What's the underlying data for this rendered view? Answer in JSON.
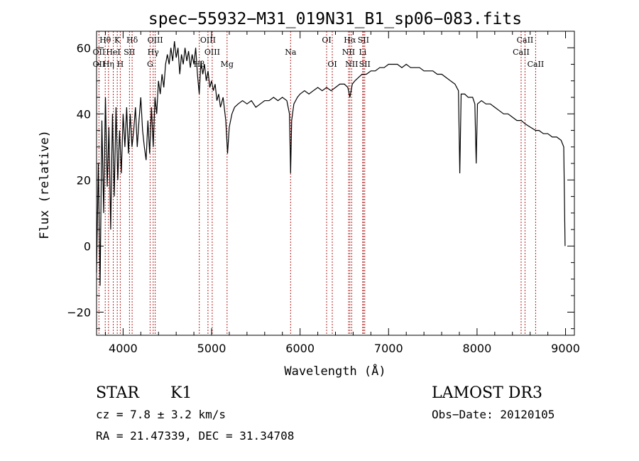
{
  "chart_data": {
    "type": "line",
    "title": "spec−55932−M31_019N31_B1_sp06−083.fits",
    "xlabel": "Wavelength (Å)",
    "ylabel": "Flux (relative)",
    "xlim": [
      3700,
      9100
    ],
    "ylim": [
      -27,
      65
    ],
    "x_ticks": [
      4000,
      5000,
      6000,
      7000,
      8000,
      9000
    ],
    "y_ticks": [
      -20,
      0,
      20,
      40,
      60
    ],
    "y_tick_labels": [
      "−20",
      "0",
      "20",
      "40",
      "60"
    ],
    "grid": false,
    "series": [
      {
        "name": "flux",
        "points": [
          [
            3700,
            -8
          ],
          [
            3720,
            25
          ],
          [
            3740,
            -12
          ],
          [
            3760,
            38
          ],
          [
            3780,
            10
          ],
          [
            3800,
            45
          ],
          [
            3820,
            18
          ],
          [
            3840,
            36
          ],
          [
            3860,
            5
          ],
          [
            3880,
            40
          ],
          [
            3900,
            15
          ],
          [
            3920,
            42
          ],
          [
            3940,
            20
          ],
          [
            3960,
            35
          ],
          [
            3980,
            22
          ],
          [
            4000,
            40
          ],
          [
            4020,
            30
          ],
          [
            4040,
            42
          ],
          [
            4060,
            28
          ],
          [
            4080,
            40
          ],
          [
            4100,
            30
          ],
          [
            4120,
            35
          ],
          [
            4140,
            42
          ],
          [
            4160,
            30
          ],
          [
            4180,
            38
          ],
          [
            4200,
            45
          ],
          [
            4220,
            35
          ],
          [
            4240,
            30
          ],
          [
            4260,
            26
          ],
          [
            4280,
            38
          ],
          [
            4300,
            28
          ],
          [
            4320,
            42
          ],
          [
            4340,
            30
          ],
          [
            4360,
            45
          ],
          [
            4380,
            40
          ],
          [
            4400,
            50
          ],
          [
            4420,
            46
          ],
          [
            4440,
            52
          ],
          [
            4460,
            48
          ],
          [
            4480,
            55
          ],
          [
            4500,
            58
          ],
          [
            4520,
            55
          ],
          [
            4540,
            60
          ],
          [
            4560,
            56
          ],
          [
            4580,
            62
          ],
          [
            4600,
            57
          ],
          [
            4620,
            60
          ],
          [
            4640,
            52
          ],
          [
            4660,
            58
          ],
          [
            4680,
            55
          ],
          [
            4700,
            60
          ],
          [
            4720,
            56
          ],
          [
            4740,
            59
          ],
          [
            4760,
            54
          ],
          [
            4780,
            58
          ],
          [
            4800,
            55
          ],
          [
            4820,
            60
          ],
          [
            4840,
            52
          ],
          [
            4860,
            46
          ],
          [
            4880,
            56
          ],
          [
            4900,
            52
          ],
          [
            4920,
            55
          ],
          [
            4940,
            50
          ],
          [
            4960,
            53
          ],
          [
            4980,
            48
          ],
          [
            5000,
            50
          ],
          [
            5020,
            47
          ],
          [
            5040,
            49
          ],
          [
            5060,
            44
          ],
          [
            5080,
            46
          ],
          [
            5100,
            42
          ],
          [
            5130,
            45
          ],
          [
            5160,
            38
          ],
          [
            5180,
            28
          ],
          [
            5200,
            36
          ],
          [
            5230,
            40
          ],
          [
            5260,
            42
          ],
          [
            5300,
            43
          ],
          [
            5350,
            44
          ],
          [
            5400,
            43
          ],
          [
            5450,
            44
          ],
          [
            5500,
            42
          ],
          [
            5550,
            43
          ],
          [
            5600,
            44
          ],
          [
            5650,
            44
          ],
          [
            5700,
            45
          ],
          [
            5750,
            44
          ],
          [
            5800,
            45
          ],
          [
            5850,
            44
          ],
          [
            5880,
            40
          ],
          [
            5893,
            22
          ],
          [
            5905,
            38
          ],
          [
            5930,
            43
          ],
          [
            5970,
            45
          ],
          [
            6000,
            46
          ],
          [
            6050,
            47
          ],
          [
            6100,
            46
          ],
          [
            6150,
            47
          ],
          [
            6200,
            48
          ],
          [
            6250,
            47
          ],
          [
            6300,
            48
          ],
          [
            6350,
            47
          ],
          [
            6400,
            48
          ],
          [
            6450,
            49
          ],
          [
            6500,
            49
          ],
          [
            6540,
            48
          ],
          [
            6563,
            45
          ],
          [
            6590,
            49
          ],
          [
            6620,
            50
          ],
          [
            6660,
            51
          ],
          [
            6700,
            52
          ],
          [
            6750,
            52
          ],
          [
            6800,
            53
          ],
          [
            6850,
            53
          ],
          [
            6900,
            54
          ],
          [
            6950,
            54
          ],
          [
            7000,
            55
          ],
          [
            7050,
            55
          ],
          [
            7100,
            55
          ],
          [
            7150,
            54
          ],
          [
            7200,
            55
          ],
          [
            7250,
            54
          ],
          [
            7300,
            54
          ],
          [
            7350,
            54
          ],
          [
            7400,
            53
          ],
          [
            7450,
            53
          ],
          [
            7500,
            53
          ],
          [
            7550,
            52
          ],
          [
            7600,
            52
          ],
          [
            7650,
            51
          ],
          [
            7700,
            50
          ],
          [
            7750,
            49
          ],
          [
            7790,
            47
          ],
          [
            7805,
            22
          ],
          [
            7820,
            46
          ],
          [
            7860,
            46
          ],
          [
            7900,
            45
          ],
          [
            7950,
            45
          ],
          [
            7975,
            43
          ],
          [
            7990,
            25
          ],
          [
            8005,
            43
          ],
          [
            8050,
            44
          ],
          [
            8100,
            43
          ],
          [
            8150,
            43
          ],
          [
            8200,
            42
          ],
          [
            8250,
            41
          ],
          [
            8300,
            40
          ],
          [
            8350,
            40
          ],
          [
            8400,
            39
          ],
          [
            8450,
            38
          ],
          [
            8500,
            38
          ],
          [
            8542,
            37
          ],
          [
            8600,
            36
          ],
          [
            8662,
            35
          ],
          [
            8700,
            35
          ],
          [
            8750,
            34
          ],
          [
            8800,
            34
          ],
          [
            8850,
            33
          ],
          [
            8900,
            33
          ],
          [
            8950,
            32
          ],
          [
            8980,
            30
          ],
          [
            8995,
            0
          ]
        ]
      }
    ],
    "lines": [
      {
        "label": "Hθ",
        "wavelength": 3798,
        "row": 1
      },
      {
        "label": "OII",
        "wavelength": 3727,
        "row": 2
      },
      {
        "label": "OII",
        "wavelength": 3727,
        "row": 3
      },
      {
        "label": "Hη",
        "wavelength": 3835,
        "row": 3
      },
      {
        "label": "K",
        "wavelength": 3934,
        "row": 1
      },
      {
        "label": "HeI",
        "wavelength": 3889,
        "row": 2
      },
      {
        "label": "H",
        "wavelength": 3968,
        "row": 3
      },
      {
        "label": "Hδ",
        "wavelength": 4102,
        "row": 1
      },
      {
        "label": "SII",
        "wavelength": 4072,
        "row": 2
      },
      {
        "label": "OIII",
        "wavelength": 4363,
        "row": 1
      },
      {
        "label": "Hγ",
        "wavelength": 4340,
        "row": 2
      },
      {
        "label": "G",
        "wavelength": 4305,
        "row": 3
      },
      {
        "label": "OIII",
        "wavelength": 4959,
        "row": 1
      },
      {
        "label": "OIII",
        "wavelength": 5007,
        "row": 2
      },
      {
        "label": "Hβ",
        "wavelength": 4861,
        "row": 3
      },
      {
        "label": "Mg",
        "wavelength": 5175,
        "row": 3
      },
      {
        "label": "Na",
        "wavelength": 5893,
        "row": 2
      },
      {
        "label": "OI",
        "wavelength": 6300,
        "row": 1
      },
      {
        "label": "OI",
        "wavelength": 6364,
        "row": 3
      },
      {
        "label": "Hα",
        "wavelength": 6563,
        "row": 1
      },
      {
        "label": "SII",
        "wavelength": 6716,
        "row": 1
      },
      {
        "label": "NII",
        "wavelength": 6548,
        "row": 2
      },
      {
        "label": "Li",
        "wavelength": 6708,
        "row": 2
      },
      {
        "label": "NII",
        "wavelength": 6583,
        "row": 3
      },
      {
        "label": "SII",
        "wavelength": 6731,
        "row": 3
      },
      {
        "label": "CaII",
        "wavelength": 8542,
        "row": 1
      },
      {
        "label": "CaII",
        "wavelength": 8498,
        "row": 2
      },
      {
        "label": "CaII",
        "wavelength": 8662,
        "row": 3
      }
    ]
  },
  "info": {
    "object_class": "STAR",
    "subclass": "K1",
    "survey": "LAMOST DR3",
    "redshift": "cz = 7.8 ± 3.2 km/s",
    "obs_date": "Obs−Date: 20120105",
    "coords": "RA =  21.47339, DEC =  31.34708"
  },
  "colors": {
    "axis": "#000000",
    "spectrum": "#000000",
    "line_marker": "#b22222"
  }
}
